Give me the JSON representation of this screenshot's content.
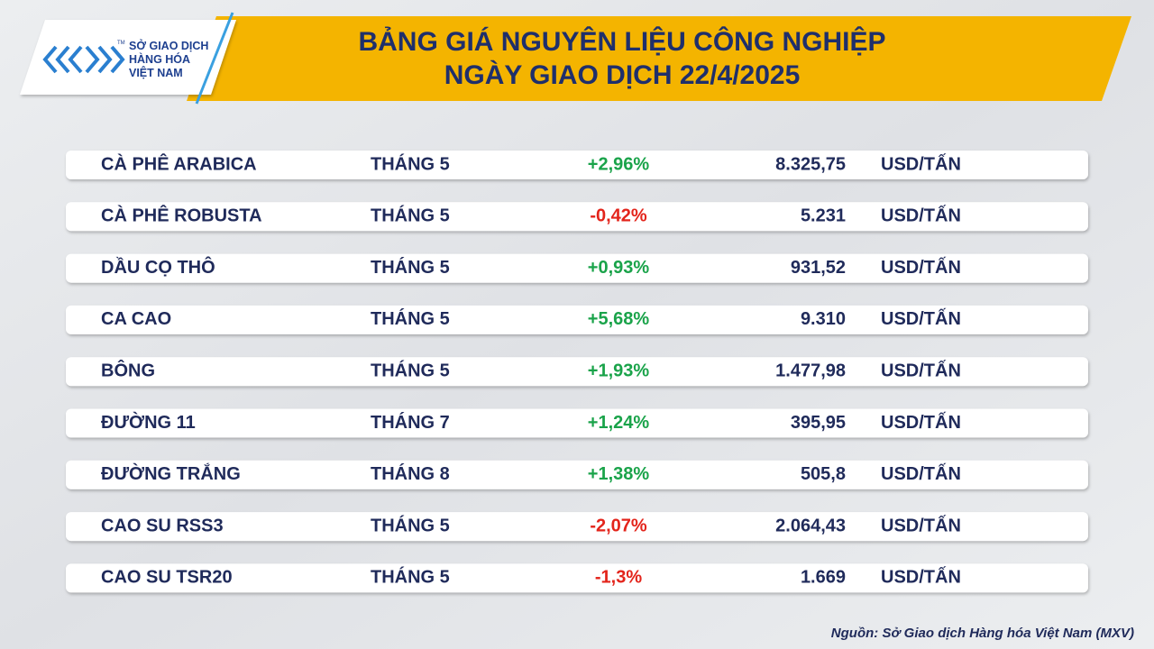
{
  "header": {
    "logo": {
      "lines": [
        "SỞ GIAO DỊCH",
        "HÀNG HÓA",
        "VIỆT NAM"
      ],
      "mark": "TM"
    },
    "title": [
      "BẢNG GIÁ NGUYÊN LIỆU CÔNG NGHIỆP",
      "NGÀY GIAO DỊCH 22/4/2025"
    ]
  },
  "table": {
    "rows": [
      {
        "name": "CÀ PHÊ ARABICA",
        "month": "THÁNG 5",
        "change": "+2,96%",
        "color": "#1aa34a",
        "price": "8.325,75",
        "unit": "USD/TẤN"
      },
      {
        "name": "CÀ PHÊ ROBUSTA",
        "month": "THÁNG 5",
        "change": "-0,42%",
        "color": "#e3241b",
        "price": "5.231",
        "unit": "USD/TẤN"
      },
      {
        "name": "DẦU CỌ THÔ",
        "month": "THÁNG 5",
        "change": "+0,93%",
        "color": "#1aa34a",
        "price": "931,52",
        "unit": "USD/TẤN"
      },
      {
        "name": "CA CAO",
        "month": "THÁNG 5",
        "change": "+5,68%",
        "color": "#1aa34a",
        "price": "9.310",
        "unit": "USD/TẤN"
      },
      {
        "name": "BÔNG",
        "month": "THÁNG 5",
        "change": "+1,93%",
        "color": "#1aa34a",
        "price": "1.477,98",
        "unit": "USD/TẤN"
      },
      {
        "name": "ĐƯỜNG 11",
        "month": "THÁNG 7",
        "change": "+1,24%",
        "color": "#1aa34a",
        "price": "395,95",
        "unit": "USD/TẤN"
      },
      {
        "name": "ĐƯỜNG TRẮNG",
        "month": "THÁNG 8",
        "change": "+1,38%",
        "color": "#1aa34a",
        "price": "505,8",
        "unit": "USD/TẤN"
      },
      {
        "name": "CAO SU RSS3",
        "month": "THÁNG 5",
        "change": "-2,07%",
        "color": "#e3241b",
        "price": "2.064,43",
        "unit": "USD/TẤN"
      },
      {
        "name": "CAO SU TSR20",
        "month": "THÁNG 5",
        "change": "-1,3%",
        "color": "#e3241b",
        "price": "1.669",
        "unit": "USD/TẤN"
      }
    ]
  },
  "footer": {
    "source": "Nguồn: Sở Giao dịch Hàng hóa Việt Nam (MXV)"
  }
}
